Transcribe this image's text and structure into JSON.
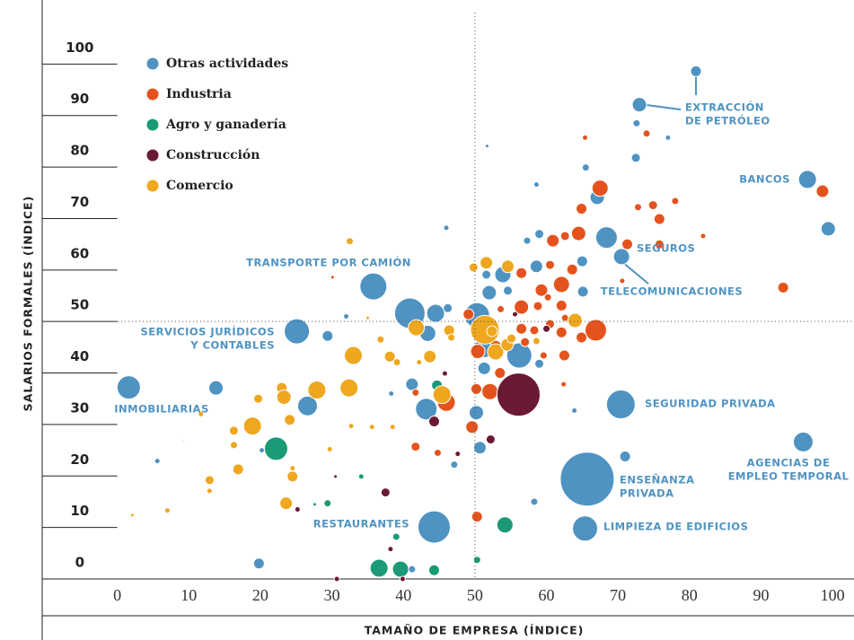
{
  "chart_data": {
    "type": "scatter",
    "x_label": "TAMAÑO DE EMPRESA (ÍNDICE)",
    "y_label": "SALARIOS FORMALES (ÍNDICE)",
    "xlim": [
      -10.5,
      103
    ],
    "ylim": [
      0,
      110
    ],
    "xticks": [
      0,
      10,
      20,
      30,
      40,
      50,
      60,
      70,
      80,
      90,
      100
    ],
    "yticks": [
      0,
      10,
      20,
      30,
      40,
      50,
      60,
      70,
      80,
      90,
      100
    ],
    "reference_lines": {
      "x": 50,
      "y": 50
    },
    "legend": "top-left",
    "annotations": [
      [
        "EXTRACCIÓN",
        "DE PETRÓLEO"
      ],
      [
        "BANCOS"
      ],
      [
        "SEGUROS"
      ],
      [
        "TELECOMUNICACIONES"
      ],
      [
        "TRANSPORTE POR CAMIÓN"
      ],
      [
        "SERVICIOS JURÍDICOS",
        "Y CONTABLES"
      ],
      [
        "INMOBILIARIAS"
      ],
      [
        "SEGURIDAD PRIVADA"
      ],
      [
        "AGENCIAS DE",
        "EMPLEO TEMPORAL"
      ],
      [
        "ENSEÑANZA",
        "PRIVADA"
      ],
      [
        "LIMPIEZA DE EDIFICIOS"
      ],
      [
        "RESTAURANTES"
      ]
    ],
    "series": [
      {
        "name": "Otras actividades",
        "color": "#4f93c2",
        "x": [
          80.9,
          73.0,
          72.6,
          77.0,
          72.5,
          65.5,
          67.1,
          96.5,
          99.4,
          68.4,
          70.5,
          58.6,
          59.0,
          58.6,
          57.3,
          53.9,
          51.6,
          52.0,
          50.3,
          51.3,
          51.3,
          56.2,
          59.0,
          50.2,
          50.7,
          65.1,
          65.0,
          35.8,
          40.9,
          44.5,
          46.2,
          43.4,
          25.1,
          29.4,
          32.0,
          46.0,
          51.7,
          1.6,
          13.8,
          26.6,
          43.2,
          70.4,
          71.0,
          95.9,
          65.7,
          65.4,
          44.3,
          19.8,
          41.2,
          47.1,
          5.6,
          20.2,
          58.3,
          38.3,
          63.9,
          41.2,
          54.6,
          62.0
        ],
        "values": [
          98.6,
          92.1,
          88.5,
          85.7,
          81.8,
          79.9,
          74.1,
          77.6,
          68.0,
          66.3,
          62.6,
          76.6,
          67.0,
          60.7,
          65.7,
          59.1,
          59.1,
          55.6,
          51.2,
          44.9,
          40.9,
          43.4,
          41.8,
          32.3,
          25.5,
          55.8,
          61.7,
          56.8,
          51.6,
          51.6,
          52.6,
          47.7,
          48.1,
          47.2,
          51.0,
          68.2,
          84.1,
          37.2,
          37.1,
          33.6,
          33.0,
          33.9,
          23.8,
          26.6,
          19.4,
          9.8,
          10.1,
          3.0,
          1.9,
          22.2,
          22.9,
          25.0,
          15.0,
          36.0,
          32.7,
          37.8,
          56.0,
          57.3
        ],
        "sizes": [
          6,
          8,
          4,
          3,
          5,
          4,
          8,
          10,
          8,
          12,
          9,
          3,
          5,
          7,
          4,
          9,
          5,
          8,
          14,
          11,
          7,
          14,
          5,
          8,
          7,
          6,
          6,
          15,
          17,
          10,
          5,
          9,
          14,
          6,
          3,
          3,
          2,
          13,
          8,
          11,
          12,
          16,
          6,
          11,
          30,
          14,
          18,
          6,
          4,
          4,
          3,
          3,
          4,
          3,
          3,
          7,
          5,
          5
        ]
      },
      {
        "name": "Industria",
        "color": "#e4531d",
        "x": [
          67.5,
          71.3,
          98.6,
          93.1,
          65.4,
          74.0,
          78.0,
          74.9,
          75.8,
          72.8,
          81.9,
          75.8,
          64.9,
          64.5,
          60.9,
          62.6,
          60.5,
          62.1,
          59.3,
          56.5,
          63.6,
          62.1,
          58.8,
          56.5,
          53.6,
          56.5,
          57.0,
          52.9,
          50.4,
          58.3,
          60.5,
          62.6,
          49.1,
          66.9,
          64.9,
          62.5,
          62.1,
          52.1,
          50.2,
          46.0,
          41.7,
          49.6,
          41.7,
          44.8,
          50.3,
          53.5,
          53.8,
          62.4,
          70.6,
          60.2,
          30.1,
          59.6
        ],
        "values": [
          75.9,
          65.0,
          75.3,
          56.6,
          85.7,
          86.5,
          73.4,
          72.6,
          65.0,
          72.2,
          66.6,
          69.9,
          71.9,
          67.1,
          65.7,
          66.6,
          61.0,
          57.2,
          56.1,
          59.4,
          60.1,
          53.1,
          53.0,
          52.8,
          52.4,
          48.6,
          46.0,
          45.3,
          44.2,
          48.3,
          49.5,
          50.7,
          51.4,
          48.3,
          46.9,
          43.4,
          47.9,
          36.4,
          36.9,
          34.3,
          36.2,
          29.5,
          25.7,
          24.5,
          12.1,
          40.0,
          37.2,
          37.8,
          57.9,
          54.7,
          58.6,
          43.4
        ],
        "sizes": [
          9,
          6,
          7,
          6,
          3,
          4,
          4,
          5,
          5,
          4,
          3,
          6,
          6,
          8,
          7,
          5,
          5,
          9,
          7,
          6,
          6,
          6,
          5,
          8,
          4,
          6,
          5,
          6,
          8,
          5,
          5,
          4,
          6,
          12,
          6,
          6,
          6,
          9,
          6,
          10,
          4,
          7,
          5,
          4,
          6,
          6,
          4,
          3,
          3,
          4,
          2,
          4
        ]
      },
      {
        "name": "Agro y ganadería",
        "color": "#1a9a76",
        "x": [
          22.2,
          54.2,
          36.6,
          39.6,
          44.3,
          44.7,
          29.4,
          34.1,
          27.6,
          39.0,
          50.3
        ],
        "values": [
          25.3,
          10.5,
          2.1,
          1.9,
          1.7,
          37.6,
          14.7,
          19.9,
          14.5,
          8.2,
          3.7
        ],
        "sizes": [
          13,
          9,
          10,
          9,
          6,
          6,
          4,
          3,
          2,
          4,
          4
        ]
      },
      {
        "name": "Construcción",
        "color": "#6b1a34",
        "x": [
          56.1,
          37.5,
          44.3,
          52.2,
          25.2,
          30.7,
          39.9,
          38.2,
          30.5,
          47.6,
          45.8,
          52.7,
          55.6,
          60.0
        ],
        "values": [
          35.8,
          16.8,
          30.6,
          27.1,
          13.5,
          0,
          0,
          5.8,
          19.9,
          24.3,
          39.9,
          49.5,
          51.4,
          48.6
        ],
        "sizes": [
          24,
          5,
          6,
          5,
          3,
          3,
          3,
          3,
          2,
          3,
          3,
          4,
          3,
          4
        ]
      },
      {
        "name": "Comercio",
        "color": "#eea71f",
        "x": [
          51.4,
          32.5,
          49.8,
          51.6,
          54.6,
          64.0,
          52.9,
          54.5,
          55.1,
          52.4,
          58.6,
          41.8,
          46.4,
          46.7,
          36.8,
          33.0,
          38.1,
          39.1,
          43.7,
          45.4,
          27.9,
          32.4,
          23.0,
          23.3,
          24.1,
          19.7,
          18.9,
          16.3,
          11.7,
          16.3,
          16.9,
          12.9,
          12.9,
          7.0,
          24.5,
          23.6,
          29.7,
          24.5,
          32.7,
          35.6,
          38.5,
          42.2,
          35.0,
          2.1,
          9.2
        ],
        "values": [
          48.4,
          65.6,
          60.5,
          61.4,
          60.7,
          50.2,
          44.1,
          45.5,
          46.7,
          48.1,
          46.2,
          48.8,
          48.3,
          46.9,
          46.5,
          43.4,
          43.2,
          42.1,
          43.2,
          35.8,
          36.7,
          37.1,
          37.1,
          35.3,
          30.9,
          35.0,
          29.7,
          28.8,
          32.0,
          26.0,
          21.3,
          19.2,
          17.1,
          13.3,
          19.9,
          14.7,
          25.2,
          21.5,
          29.7,
          29.5,
          29.5,
          42.1,
          50.7,
          12.4,
          26.9
        ],
        "sizes": [
          16,
          4,
          5,
          7,
          7,
          8,
          9,
          7,
          5,
          6,
          4,
          9,
          6,
          4,
          4,
          10,
          6,
          4,
          7,
          10,
          10,
          10,
          6,
          8,
          6,
          5,
          10,
          5,
          3,
          4,
          6,
          5,
          3,
          3,
          6,
          7,
          3,
          3,
          3,
          3,
          3,
          3,
          2,
          2,
          1
        ]
      }
    ]
  }
}
